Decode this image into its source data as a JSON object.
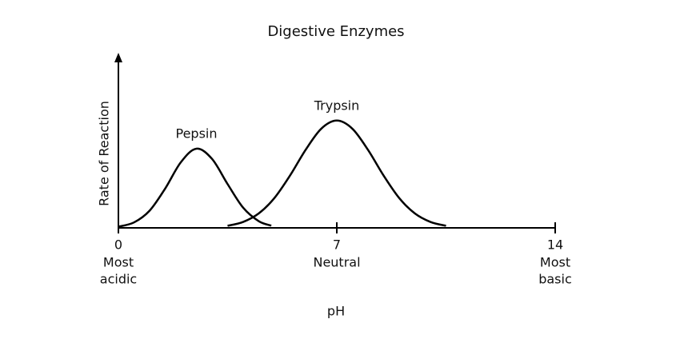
{
  "chart_data": {
    "type": "line",
    "title": "Digestive Enzymes",
    "xlabel": "pH",
    "ylabel": "Rate of Reaction",
    "xlim": [
      0,
      14
    ],
    "xticks": [
      0,
      7,
      14
    ],
    "xtick_notes": [
      [
        "Most",
        "acidic"
      ],
      [
        "Neutral"
      ],
      [
        "Most",
        "basic"
      ]
    ],
    "ylim": [
      0,
      100
    ],
    "color": "#000000",
    "series": [
      {
        "name": "Pepsin",
        "x": [
          0,
          0.5,
          1,
          1.5,
          2,
          2.5,
          3,
          3.5,
          4,
          4.5,
          4.9
        ],
        "values": [
          0.7,
          3.2,
          10.1,
          23.1,
          38.5,
          46.5,
          40.5,
          25.7,
          11.8,
          3.9,
          1.3
        ]
      },
      {
        "name": "Trypsin",
        "x": [
          3.5,
          4,
          4.5,
          5,
          5.5,
          6,
          6.5,
          7,
          7.5,
          8,
          8.5,
          9,
          9.5,
          10,
          10.5
        ],
        "values": [
          1.2,
          3.5,
          8.5,
          17.5,
          30.7,
          45.8,
          58.2,
          63,
          58.2,
          45.8,
          30.7,
          17.5,
          8.5,
          3.5,
          1.2
        ]
      }
    ]
  }
}
